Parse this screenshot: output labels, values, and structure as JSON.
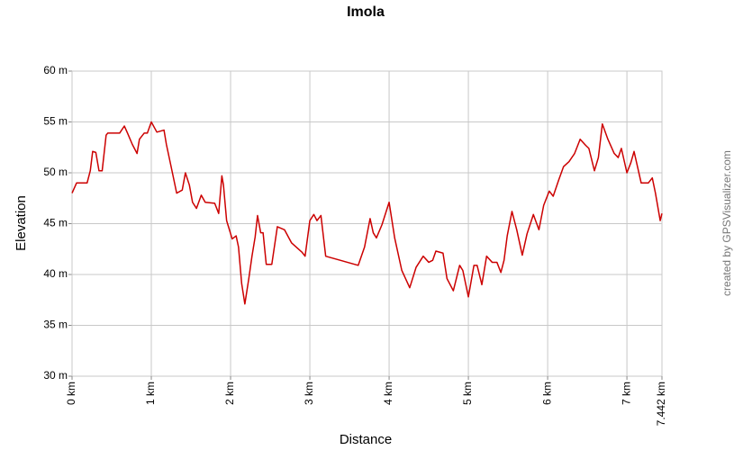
{
  "chart_data": {
    "type": "line",
    "title": "Imola",
    "xlabel": "Distance",
    "ylabel": "Elevation",
    "credit": "created by GPSVisualizer.com",
    "xlim": [
      0,
      7.442
    ],
    "ylim": [
      30,
      60
    ],
    "xticks": [
      {
        "value": 0,
        "label": "0 km"
      },
      {
        "value": 1,
        "label": "1 km"
      },
      {
        "value": 2,
        "label": "2 km"
      },
      {
        "value": 3,
        "label": "3 km"
      },
      {
        "value": 4,
        "label": "4 km"
      },
      {
        "value": 5,
        "label": "5 km"
      },
      {
        "value": 6,
        "label": "6 km"
      },
      {
        "value": 7,
        "label": "7 km"
      },
      {
        "value": 7.442,
        "label": "7.442 km"
      }
    ],
    "yticks": [
      {
        "value": 30,
        "label": "30 m"
      },
      {
        "value": 35,
        "label": "35 m"
      },
      {
        "value": 40,
        "label": "40 m"
      },
      {
        "value": 45,
        "label": "45 m"
      },
      {
        "value": 50,
        "label": "50 m"
      },
      {
        "value": 55,
        "label": "55 m"
      },
      {
        "value": 60,
        "label": "60 m"
      }
    ],
    "grid": true,
    "series": [
      {
        "color": "#cc0000",
        "x": [
          0,
          0.057,
          0.11,
          0.19,
          0.23,
          0.26,
          0.3,
          0.34,
          0.38,
          0.43,
          0.45,
          0.6,
          0.66,
          0.7,
          0.76,
          0.82,
          0.85,
          0.91,
          0.95,
          1.0,
          1.07,
          1.16,
          1.19,
          1.25,
          1.32,
          1.39,
          1.43,
          1.48,
          1.52,
          1.57,
          1.63,
          1.68,
          1.8,
          1.85,
          1.89,
          1.91,
          1.95,
          2.02,
          2.07,
          2.1,
          2.14,
          2.18,
          2.23,
          2.27,
          2.31,
          2.34,
          2.38,
          2.41,
          2.45,
          2.52,
          2.59,
          2.68,
          2.77,
          2.9,
          2.94,
          3.0,
          3.05,
          3.09,
          3.14,
          3.2,
          3.61,
          3.69,
          3.76,
          3.8,
          3.84,
          3.91,
          4.0,
          4.07,
          4.16,
          4.26,
          4.34,
          4.43,
          4.5,
          4.55,
          4.59,
          4.68,
          4.73,
          4.81,
          4.89,
          4.93,
          5.0,
          5.07,
          5.11,
          5.17,
          5.23,
          5.3,
          5.36,
          5.41,
          5.45,
          5.49,
          5.55,
          5.61,
          5.68,
          5.74,
          5.82,
          5.89,
          5.95,
          6.02,
          6.07,
          6.14,
          6.2,
          6.27,
          6.34,
          6.41,
          6.48,
          6.52,
          6.59,
          6.64,
          6.69,
          6.76,
          6.84,
          6.89,
          6.93,
          7.0,
          7.05,
          7.09,
          7.18,
          7.27,
          7.32,
          7.36,
          7.42,
          7.442
        ],
        "values": [
          48.0,
          49.0,
          49.0,
          49.0,
          50.2,
          52.1,
          52.0,
          50.2,
          50.2,
          53.7,
          53.9,
          53.9,
          54.6,
          53.9,
          52.8,
          51.9,
          53.3,
          53.9,
          53.9,
          55.0,
          54.0,
          54.2,
          52.8,
          50.6,
          48.0,
          48.3,
          50.0,
          48.8,
          47.1,
          46.5,
          47.8,
          47.1,
          47.0,
          46.0,
          49.7,
          48.8,
          45.3,
          43.5,
          43.8,
          42.7,
          39.1,
          37.1,
          39.6,
          41.8,
          43.7,
          45.8,
          44.1,
          44.1,
          41.0,
          41.0,
          44.7,
          44.4,
          43.1,
          42.2,
          41.8,
          45.3,
          45.9,
          45.3,
          45.8,
          41.8,
          40.9,
          42.7,
          45.5,
          44.1,
          43.6,
          44.9,
          47.1,
          43.6,
          40.4,
          38.7,
          40.7,
          41.8,
          41.2,
          41.4,
          42.3,
          42.1,
          39.6,
          38.4,
          40.9,
          40.4,
          37.8,
          40.9,
          40.9,
          39.0,
          41.8,
          41.2,
          41.2,
          40.2,
          41.4,
          43.8,
          46.2,
          44.4,
          41.9,
          44.0,
          45.9,
          44.4,
          46.8,
          48.2,
          47.7,
          49.3,
          50.6,
          51.1,
          51.9,
          53.3,
          52.7,
          52.4,
          50.2,
          51.5,
          54.8,
          53.3,
          51.9,
          51.5,
          52.4,
          50.0,
          51.0,
          52.1,
          49.0,
          49.0,
          49.5,
          48.0,
          45.3,
          46.0
        ]
      }
    ]
  }
}
